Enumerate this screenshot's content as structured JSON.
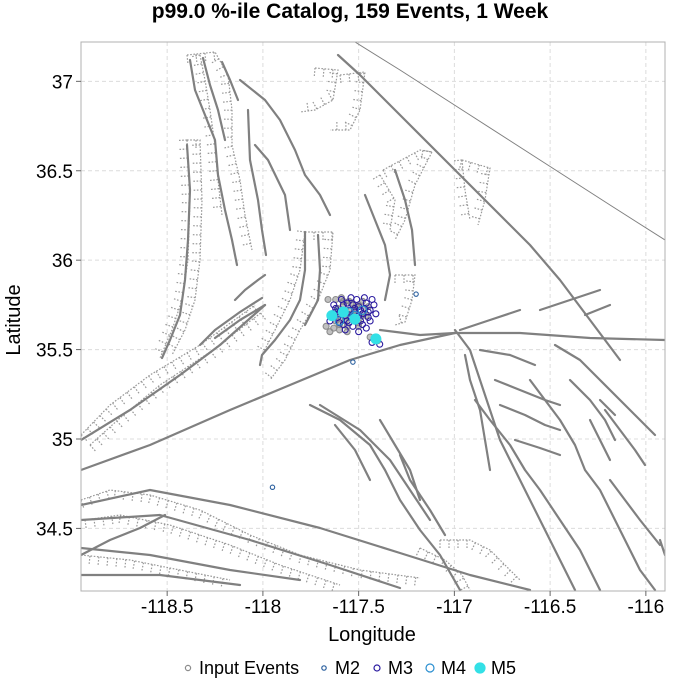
{
  "chart_data": {
    "type": "scatter",
    "title": "p99.0 %-ile Catalog, 159 Events, 1 Week",
    "xlabel": "Longitude",
    "ylabel": "Latitude",
    "xlim": [
      -118.95,
      -115.9
    ],
    "ylim": [
      34.15,
      37.22
    ],
    "xticks": [
      -118.5,
      -118,
      -117.5,
      -117,
      -116.5,
      -116
    ],
    "xtick_labels": [
      "-118.5",
      "-118",
      "-117.5",
      "-117",
      "-116.5",
      "-116"
    ],
    "yticks": [
      34.5,
      35,
      35.5,
      36,
      36.5,
      37
    ],
    "ytick_labels": [
      "34.5",
      "35",
      "35.5",
      "36",
      "36.5",
      "37"
    ],
    "grid": true,
    "legend_position": "bottom",
    "legend": [
      {
        "label": "Input Events",
        "color": "#8c8c8c",
        "style": "hollow-small"
      },
      {
        "label": "M2",
        "color": "#2a5f9e",
        "style": "hollow-small"
      },
      {
        "label": "M3",
        "color": "#2b1ba0",
        "style": "hollow"
      },
      {
        "label": "M4",
        "color": "#2a8fd0",
        "style": "hollow-large"
      },
      {
        "label": "M5",
        "color": "#33e0e6",
        "style": "filled"
      }
    ],
    "series": [
      {
        "name": "Input Events",
        "color": "#8c8c8c",
        "points": [
          [
            -117.62,
            35.66
          ],
          [
            -117.6,
            35.7
          ],
          [
            -117.58,
            35.74
          ],
          [
            -117.55,
            35.68
          ],
          [
            -117.52,
            35.72
          ],
          [
            -117.5,
            35.65
          ],
          [
            -117.48,
            35.7
          ],
          [
            -117.56,
            35.63
          ],
          [
            -117.63,
            35.62
          ],
          [
            -117.65,
            35.6
          ],
          [
            -117.54,
            35.76
          ],
          [
            -117.5,
            35.75
          ],
          [
            -117.59,
            35.67
          ],
          [
            -117.57,
            35.71
          ],
          [
            -117.47,
            35.73
          ],
          [
            -117.52,
            35.68
          ],
          [
            -117.6,
            35.64
          ],
          [
            -117.55,
            35.77
          ],
          [
            -117.45,
            35.74
          ],
          [
            -117.66,
            35.78
          ],
          [
            -117.62,
            35.78
          ],
          [
            -117.58,
            35.77
          ],
          [
            -117.61,
            35.73
          ],
          [
            -117.53,
            35.7
          ],
          [
            -117.49,
            35.68
          ],
          [
            -117.57,
            35.66
          ],
          [
            -117.64,
            35.7
          ],
          [
            -117.51,
            35.74
          ],
          [
            -117.42,
            35.56
          ],
          [
            -117.4,
            35.55
          ],
          [
            -117.44,
            35.57
          ],
          [
            -117.56,
            35.6
          ],
          [
            -117.5,
            35.63
          ],
          [
            -117.46,
            35.69
          ],
          [
            -117.67,
            35.63
          ],
          [
            -117.6,
            35.61
          ],
          [
            -117.54,
            35.72
          ],
          [
            -117.59,
            35.79
          ],
          [
            -117.48,
            35.77
          ],
          [
            -117.52,
            35.66
          ]
        ]
      },
      {
        "name": "M2",
        "color": "#2a5f9e",
        "points": [
          [
            -117.95,
            34.73
          ],
          [
            -117.53,
            35.43
          ],
          [
            -117.2,
            35.81
          ],
          [
            -117.61,
            35.72
          ],
          [
            -117.55,
            35.7
          ]
        ]
      },
      {
        "name": "M3",
        "color": "#2b1ba0",
        "points": [
          [
            -117.6,
            35.7
          ],
          [
            -117.58,
            35.75
          ],
          [
            -117.55,
            35.72
          ],
          [
            -117.52,
            35.68
          ],
          [
            -117.5,
            35.74
          ],
          [
            -117.48,
            35.7
          ],
          [
            -117.46,
            35.76
          ],
          [
            -117.44,
            35.72
          ],
          [
            -117.56,
            35.66
          ],
          [
            -117.53,
            35.63
          ],
          [
            -117.58,
            35.64
          ],
          [
            -117.61,
            35.68
          ],
          [
            -117.49,
            35.66
          ],
          [
            -117.45,
            35.68
          ],
          [
            -117.47,
            35.79
          ],
          [
            -117.51,
            35.78
          ],
          [
            -117.54,
            35.79
          ],
          [
            -117.43,
            35.78
          ],
          [
            -117.57,
            35.69
          ],
          [
            -117.52,
            35.71
          ],
          [
            -117.5,
            35.69
          ],
          [
            -117.63,
            35.75
          ],
          [
            -117.59,
            35.78
          ],
          [
            -117.55,
            35.65
          ],
          [
            -117.48,
            35.64
          ],
          [
            -117.42,
            35.75
          ],
          [
            -117.41,
            35.7
          ],
          [
            -117.44,
            35.66
          ],
          [
            -117.56,
            35.76
          ],
          [
            -117.53,
            35.75
          ],
          [
            -117.62,
            35.71
          ],
          [
            -117.47,
            35.73
          ],
          [
            -117.41,
            35.55
          ],
          [
            -117.39,
            35.53
          ],
          [
            -117.43,
            35.54
          ],
          [
            -117.65,
            35.66
          ],
          [
            -117.6,
            35.65
          ],
          [
            -117.57,
            35.61
          ],
          [
            -117.5,
            35.6
          ],
          [
            -117.46,
            35.62
          ],
          [
            -117.52,
            35.73
          ],
          [
            -117.58,
            35.72
          ],
          [
            -117.54,
            35.68
          ],
          [
            -117.49,
            35.72
          ],
          [
            -117.45,
            35.71
          ],
          [
            -117.62,
            35.73
          ]
        ]
      },
      {
        "name": "M4",
        "color": "#2a8fd0",
        "points": [
          [
            -117.55,
            35.71
          ],
          [
            -117.6,
            35.66
          ],
          [
            -117.52,
            35.69
          ],
          [
            -117.41,
            35.56
          ],
          [
            -117.48,
            35.72
          ]
        ]
      },
      {
        "name": "M5",
        "color": "#33e0e6",
        "points": [
          [
            -117.64,
            35.69
          ],
          [
            -117.58,
            35.71
          ],
          [
            -117.41,
            35.56
          ],
          [
            -117.52,
            35.67
          ]
        ]
      }
    ]
  }
}
